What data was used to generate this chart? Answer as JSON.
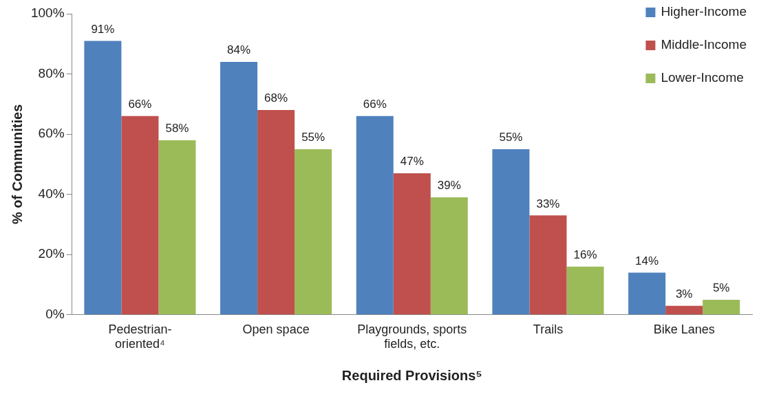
{
  "chart_data": {
    "type": "bar",
    "xlabel": "Required Provisions⁵",
    "ylabel": "% of Communities",
    "categories": [
      "Pedestrian-oriented⁴",
      "Open space",
      "Playgrounds, sports fields, etc.",
      "Trails",
      "Bike Lanes"
    ],
    "series": [
      {
        "name": "Higher-Income",
        "color": "#4f81bd",
        "values": [
          91,
          84,
          66,
          55,
          14
        ],
        "value_labels": [
          "91%",
          "84%",
          "66%",
          "55%",
          "14%"
        ]
      },
      {
        "name": "Middle-Income",
        "color": "#c0504d",
        "values": [
          66,
          68,
          47,
          33,
          3
        ],
        "value_labels": [
          "66%",
          "68%",
          "47%",
          "33%",
          "3%"
        ]
      },
      {
        "name": "Lower-Income",
        "color": "#9bbb59",
        "values": [
          58,
          55,
          39,
          16,
          5
        ],
        "value_labels": [
          "58%",
          "55%",
          "39%",
          "16%",
          "5%"
        ]
      }
    ],
    "ylim": [
      0,
      100
    ],
    "yticks": [
      {
        "value": 0,
        "label": "0%"
      },
      {
        "value": 20,
        "label": "20%"
      },
      {
        "value": 40,
        "label": "40%"
      },
      {
        "value": 60,
        "label": "60%"
      },
      {
        "value": 80,
        "label": "80%"
      },
      {
        "value": 100,
        "label": "100%"
      }
    ],
    "grid": false,
    "legend": "top right"
  }
}
